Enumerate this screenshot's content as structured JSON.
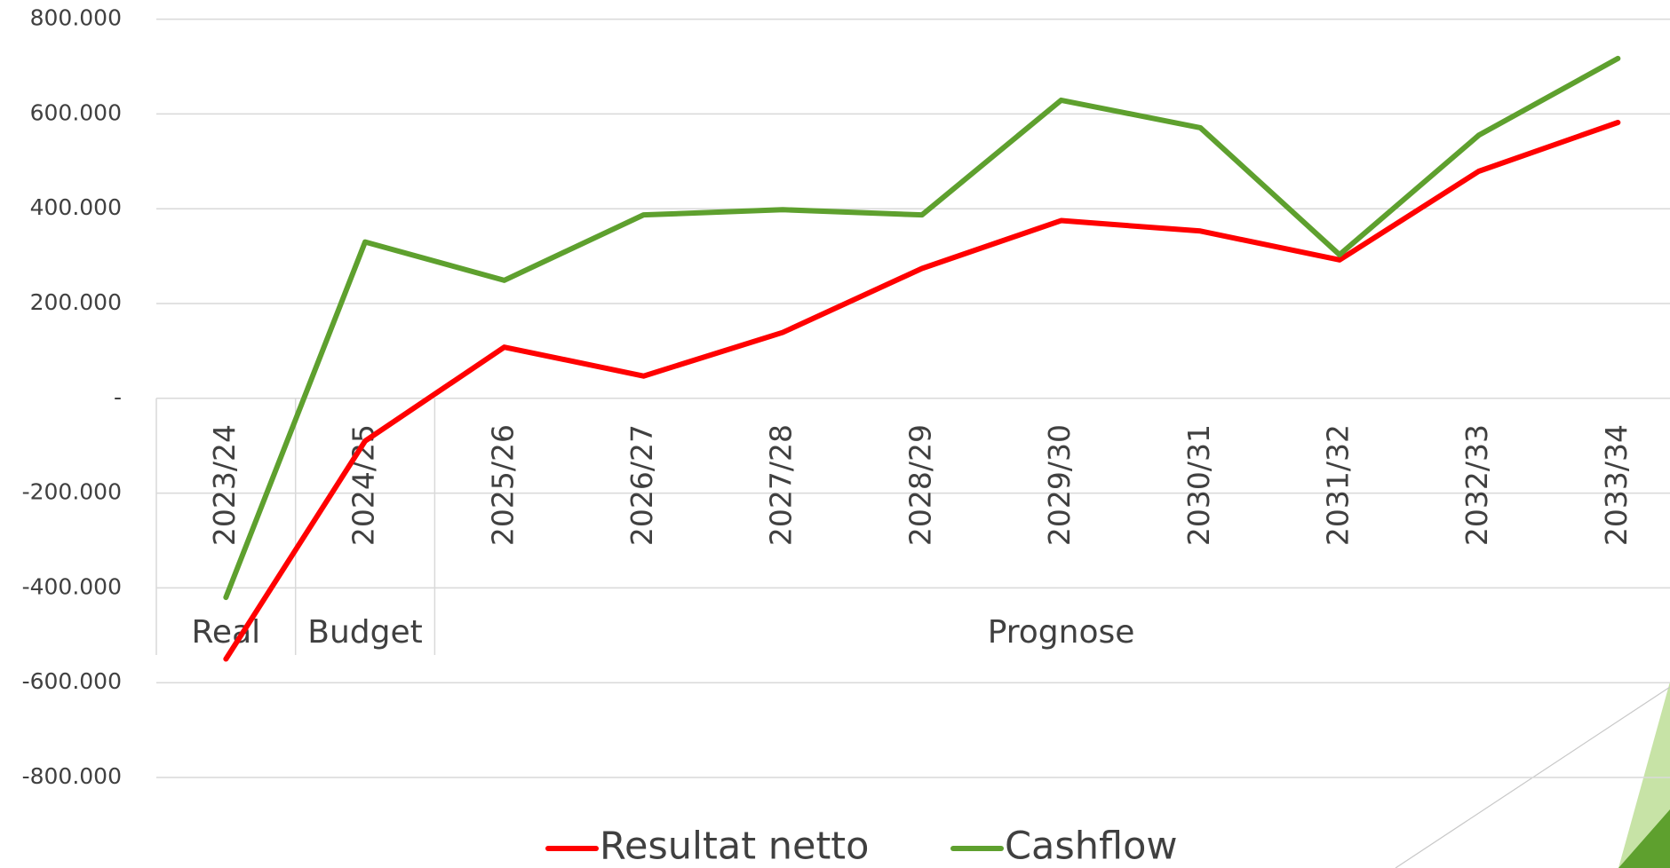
{
  "chart_data": {
    "type": "line",
    "categories": [
      "2023/24",
      "2024/25",
      "2025/26",
      "2026/27",
      "2027/28",
      "2028/29",
      "2029/30",
      "2030/31",
      "2031/32",
      "2032/33",
      "2033/34"
    ],
    "category_groups": [
      {
        "label": "Real",
        "count": 1
      },
      {
        "label": "Budget",
        "count": 1
      },
      {
        "label": "Prognose",
        "count": 9
      }
    ],
    "series": [
      {
        "name": "Resultat netto",
        "color": "#ff0000",
        "values": [
          -550000,
          -90000,
          108000,
          47000,
          139000,
          274000,
          375000,
          353000,
          292000,
          479000,
          582000
        ]
      },
      {
        "name": "Cashflow",
        "color": "#5ea02e",
        "values": [
          -420000,
          330000,
          249000,
          387000,
          398000,
          387000,
          629000,
          571000,
          303000,
          555000,
          717000
        ]
      }
    ],
    "ylim": [
      -800000,
      800000
    ],
    "yticks": [
      {
        "value": -800000,
        "label": "-800.000"
      },
      {
        "value": -600000,
        "label": "-600.000"
      },
      {
        "value": -400000,
        "label": "-400.000"
      },
      {
        "value": -200000,
        "label": "-200.000"
      },
      {
        "value": 0,
        "label": "-"
      },
      {
        "value": 200000,
        "label": "200.000"
      },
      {
        "value": 400000,
        "label": "400.000"
      },
      {
        "value": 600000,
        "label": "600.000"
      },
      {
        "value": 800000,
        "label": "800.000"
      }
    ],
    "grid": true,
    "legend": "bottom"
  }
}
